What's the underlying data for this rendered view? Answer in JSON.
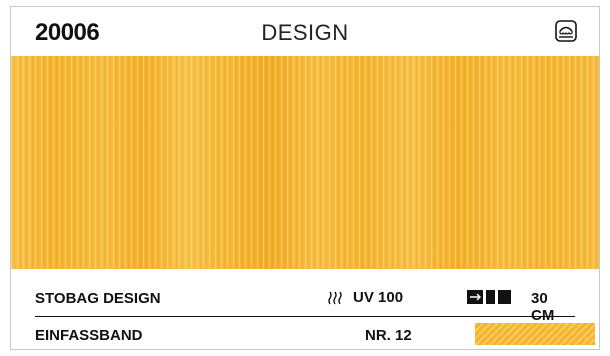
{
  "header": {
    "article_number": "20006",
    "collection": "DESIGN",
    "icon": "awning-icon"
  },
  "swatch": {
    "color": "#f5b733",
    "pattern": "vertical-stripes"
  },
  "details": {
    "product_name": "STOBAG DESIGN",
    "uv_icon": "heat-waves-icon",
    "uv_label": "UV 100",
    "width_icon": "fabric-width-icon",
    "width_label": "30 CM"
  },
  "binding_tape": {
    "label": "EINFASSBAND",
    "number": "NR. 12",
    "color": "#f4b42f"
  }
}
